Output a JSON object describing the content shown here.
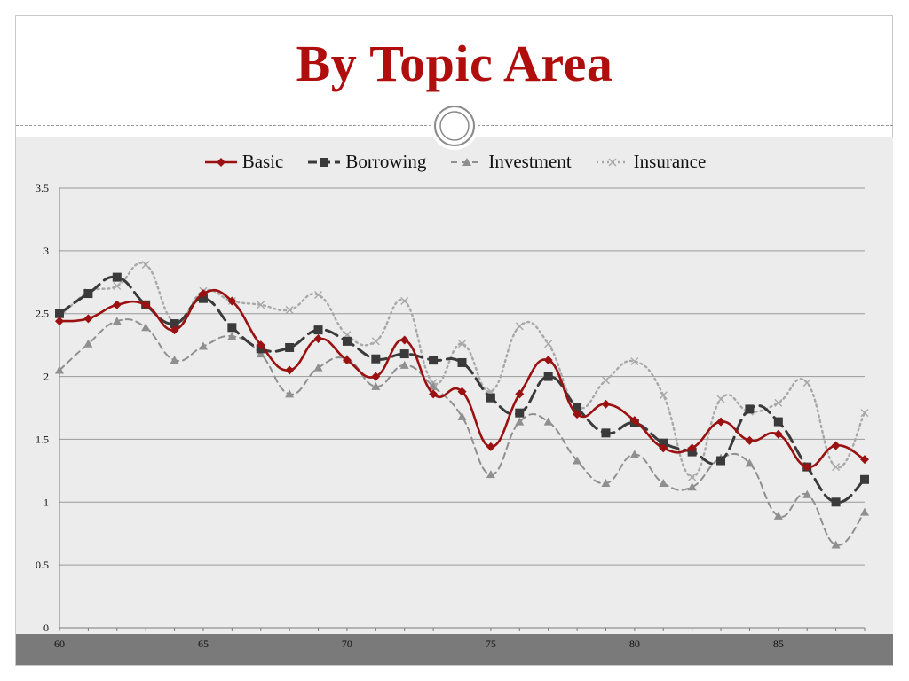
{
  "slide": {
    "title": "By Topic Area"
  },
  "chart_data": {
    "type": "line",
    "x": [
      60,
      61,
      62,
      63,
      64,
      65,
      66,
      67,
      68,
      69,
      70,
      71,
      72,
      73,
      74,
      75,
      76,
      77,
      78,
      79,
      80,
      81,
      82,
      83,
      84,
      85,
      86,
      87,
      88
    ],
    "xticks": [
      "60",
      "65",
      "70",
      "75",
      "80",
      "85"
    ],
    "ylim": [
      0,
      3.5
    ],
    "yticks": [
      "0",
      "0.5",
      "1",
      "1.5",
      "2",
      "2.5",
      "3",
      "3.5"
    ],
    "grid": "horizontal",
    "legend_position": "top",
    "series": [
      {
        "name": "Basic",
        "color": "#9b1010",
        "marker": "diamond",
        "dash": "solid",
        "values": [
          2.44,
          2.46,
          2.57,
          2.57,
          2.37,
          2.66,
          2.6,
          2.25,
          2.05,
          2.3,
          2.13,
          2.0,
          2.29,
          1.86,
          1.88,
          1.44,
          1.86,
          2.13,
          1.7,
          1.78,
          1.65,
          1.43,
          1.43,
          1.64,
          1.49,
          1.54,
          1.28,
          1.45,
          1.34
        ]
      },
      {
        "name": "Borrowing",
        "color": "#3a3a3a",
        "marker": "square",
        "dash": "long-dash",
        "values": [
          2.5,
          2.66,
          2.79,
          2.57,
          2.42,
          2.62,
          2.39,
          2.22,
          2.23,
          2.37,
          2.28,
          2.14,
          2.18,
          2.13,
          2.11,
          1.83,
          1.71,
          2.0,
          1.75,
          1.55,
          1.63,
          1.47,
          1.4,
          1.33,
          1.74,
          1.64,
          1.28,
          1.0,
          1.18
        ]
      },
      {
        "name": "Investment",
        "color": "#8f8f8f",
        "marker": "triangle",
        "dash": "dash",
        "values": [
          2.05,
          2.26,
          2.44,
          2.39,
          2.13,
          2.24,
          2.32,
          2.18,
          1.86,
          2.07,
          2.14,
          1.92,
          2.09,
          1.92,
          1.68,
          1.22,
          1.64,
          1.64,
          1.33,
          1.15,
          1.38,
          1.15,
          1.12,
          1.35,
          1.31,
          0.89,
          1.06,
          0.66,
          0.92
        ]
      },
      {
        "name": "Insurance",
        "color": "#a8a8a8",
        "marker": "x",
        "dash": "dot",
        "values": [
          2.47,
          2.67,
          2.72,
          2.89,
          2.43,
          2.68,
          2.6,
          2.57,
          2.53,
          2.65,
          2.33,
          2.28,
          2.6,
          1.95,
          2.26,
          1.88,
          2.4,
          2.26,
          1.76,
          1.97,
          2.12,
          1.85,
          1.2,
          1.82,
          1.72,
          1.79,
          1.95,
          1.28,
          1.71
        ]
      }
    ]
  }
}
